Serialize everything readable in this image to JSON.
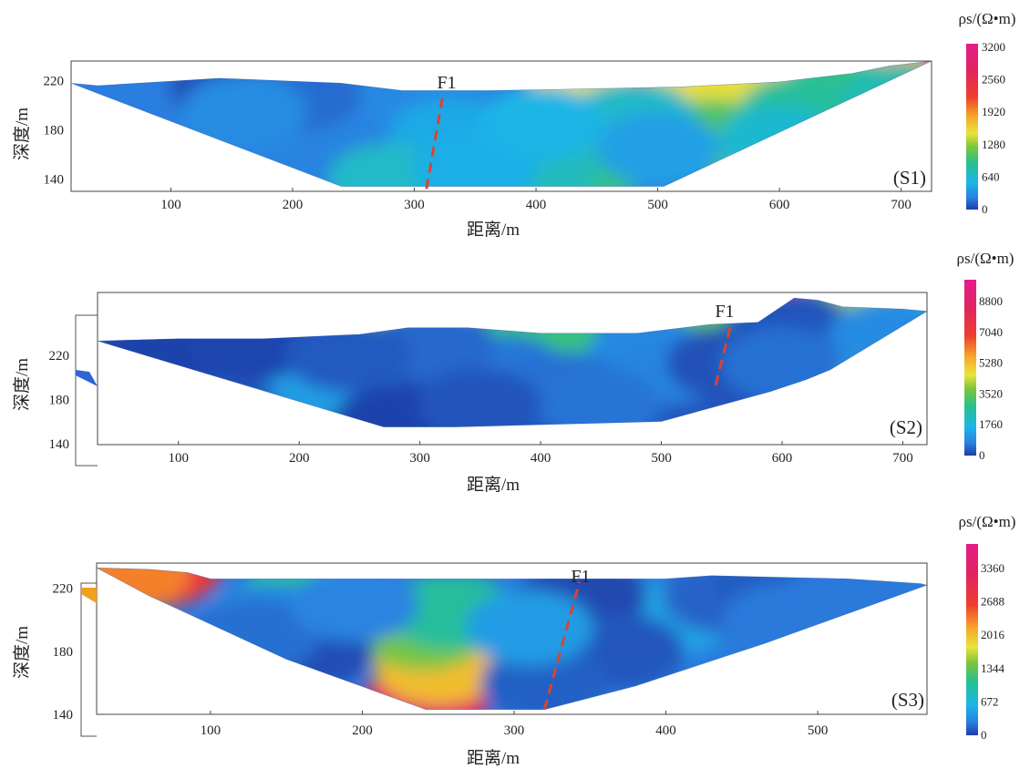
{
  "chart_data": [
    {
      "type": "heatmap",
      "panel_label": "(S1)",
      "fault_label": "F1",
      "xlabel": "距离/m",
      "ylabel": "深度/m",
      "x_ticks": [
        "100",
        "200",
        "300",
        "400",
        "500",
        "600",
        "700"
      ],
      "y_ticks": [
        "220",
        "180",
        "140"
      ],
      "xlim": [
        18,
        725
      ],
      "ylim": [
        130,
        236
      ],
      "colorbar": {
        "title": "ρs/(Ω•m)",
        "ticks": [
          "3200",
          "2560",
          "1920",
          "1280",
          "640",
          "0"
        ],
        "range": [
          0,
          3200
        ]
      },
      "section_outline": [
        [
          18,
          218
        ],
        [
          40,
          216
        ],
        [
          140,
          222
        ],
        [
          240,
          218
        ],
        [
          290,
          212
        ],
        [
          360,
          212
        ],
        [
          420,
          213
        ],
        [
          470,
          214
        ],
        [
          520,
          215
        ],
        [
          600,
          219
        ],
        [
          660,
          226
        ],
        [
          690,
          232
        ],
        [
          725,
          236
        ],
        [
          505,
          134
        ],
        [
          240,
          134
        ]
      ],
      "fault_trace": [
        [
          310,
          132
        ],
        [
          324,
          211
        ]
      ],
      "features": [
        {
          "x": 445,
          "y": 210,
          "rho": 3000
        },
        {
          "x": 440,
          "y": 204,
          "rho": 1500
        },
        {
          "x": 700,
          "y": 232,
          "rho": 3000
        },
        {
          "x": 672,
          "y": 230,
          "rho": 1800
        },
        {
          "x": 590,
          "y": 222,
          "rho": 1600
        },
        {
          "x": 540,
          "y": 215,
          "rho": 1500
        },
        {
          "x": 545,
          "y": 175,
          "rho": 1050
        },
        {
          "x": 440,
          "y": 150,
          "rho": 950
        },
        {
          "x": 400,
          "y": 148,
          "rho": 700
        },
        {
          "x": 650,
          "y": 210,
          "rho": 950
        },
        {
          "x": 618,
          "y": 195,
          "rho": 850
        },
        {
          "x": 700,
          "y": 205,
          "rho": 750
        },
        {
          "x": 70,
          "y": 206,
          "rho": 220
        },
        {
          "x": 150,
          "y": 215,
          "rho": 60
        },
        {
          "x": 205,
          "y": 209,
          "rho": 160
        },
        {
          "x": 310,
          "y": 210,
          "rho": 280
        },
        {
          "x": 160,
          "y": 195,
          "rho": 300
        },
        {
          "x": 330,
          "y": 175,
          "rho": 450
        },
        {
          "x": 280,
          "y": 140,
          "rho": 650
        },
        {
          "x": 350,
          "y": 150,
          "rho": 480
        },
        {
          "x": 480,
          "y": 190,
          "rho": 650
        },
        {
          "x": 600,
          "y": 170,
          "rho": 620
        },
        {
          "x": 500,
          "y": 165,
          "rho": 400
        },
        {
          "x": 405,
          "y": 185,
          "rho": 520
        }
      ]
    },
    {
      "type": "heatmap",
      "panel_label": "(S2)",
      "fault_label": "F1",
      "xlabel": "距离/m",
      "ylabel": "深度/m",
      "x_ticks": [
        "100",
        "200",
        "300",
        "400",
        "500",
        "600",
        "700"
      ],
      "y_ticks": [
        "220",
        "180",
        "140"
      ],
      "xlim": [
        33,
        720
      ],
      "ylim": [
        139,
        277
      ],
      "colorbar": {
        "title": "ρs/(Ω•m)",
        "ticks": [
          "8800",
          "7040",
          "5280",
          "3520",
          "1760",
          "0"
        ],
        "range": [
          0,
          10000
        ]
      },
      "section_outline": [
        [
          33,
          233
        ],
        [
          100,
          235
        ],
        [
          170,
          235
        ],
        [
          250,
          239
        ],
        [
          290,
          245
        ],
        [
          340,
          245
        ],
        [
          400,
          240
        ],
        [
          480,
          240
        ],
        [
          540,
          248
        ],
        [
          580,
          250
        ],
        [
          610,
          272
        ],
        [
          630,
          270
        ],
        [
          650,
          264
        ],
        [
          700,
          262
        ],
        [
          720,
          260
        ],
        [
          640,
          207
        ],
        [
          620,
          198
        ],
        [
          590,
          187
        ],
        [
          500,
          160
        ],
        [
          330,
          155
        ],
        [
          270,
          155
        ]
      ],
      "fault_trace": [
        [
          545,
          193
        ],
        [
          558,
          250
        ]
      ],
      "features": [
        {
          "x": 615,
          "y": 264,
          "rho": 9500
        },
        {
          "x": 637,
          "y": 257,
          "rho": 9000
        },
        {
          "x": 658,
          "y": 258,
          "rho": 2500
        },
        {
          "x": 685,
          "y": 256,
          "rho": 2500
        },
        {
          "x": 560,
          "y": 245,
          "rho": 3500
        },
        {
          "x": 300,
          "y": 243,
          "rho": 4000
        },
        {
          "x": 400,
          "y": 238,
          "rho": 3000
        },
        {
          "x": 632,
          "y": 240,
          "rho": 3500
        },
        {
          "x": 650,
          "y": 247,
          "rho": 4000
        },
        {
          "x": 620,
          "y": 225,
          "rho": 1600
        },
        {
          "x": 605,
          "y": 247,
          "rho": 250
        },
        {
          "x": 225,
          "y": 193,
          "rho": 1200
        },
        {
          "x": 490,
          "y": 222,
          "rho": 900
        },
        {
          "x": 505,
          "y": 208,
          "rho": 800
        },
        {
          "x": 690,
          "y": 238,
          "rho": 900
        },
        {
          "x": 150,
          "y": 235,
          "rho": 600
        },
        {
          "x": 90,
          "y": 225,
          "rho": 40
        },
        {
          "x": 160,
          "y": 230,
          "rho": 80
        },
        {
          "x": 280,
          "y": 160,
          "rho": 40
        },
        {
          "x": 370,
          "y": 205,
          "rho": 600
        },
        {
          "x": 420,
          "y": 190,
          "rho": 550
        },
        {
          "x": 310,
          "y": 230,
          "rho": 450
        },
        {
          "x": 450,
          "y": 175,
          "rho": 580
        },
        {
          "x": 555,
          "y": 213,
          "rho": 200
        },
        {
          "x": 600,
          "y": 212,
          "rho": 550
        },
        {
          "x": 240,
          "y": 220,
          "rho": 300
        },
        {
          "x": 350,
          "y": 175,
          "rho": 250
        }
      ]
    },
    {
      "type": "heatmap",
      "panel_label": "(S3)",
      "fault_label": "F1",
      "xlabel": "距离/m",
      "ylabel": "深度/m",
      "x_ticks": [
        "100",
        "200",
        "300",
        "400",
        "500"
      ],
      "y_ticks": [
        "220",
        "180",
        "140"
      ],
      "xlim": [
        25,
        572
      ],
      "ylim": [
        140,
        236
      ],
      "colorbar": {
        "title": "ρs/(Ω•m)",
        "ticks": [
          "3360",
          "2688",
          "2016",
          "1344",
          "672",
          "0"
        ],
        "range": [
          0,
          3800
        ]
      },
      "section_outline": [
        [
          25,
          233
        ],
        [
          60,
          232
        ],
        [
          85,
          230
        ],
        [
          100,
          226
        ],
        [
          250,
          226
        ],
        [
          330,
          226
        ],
        [
          400,
          226
        ],
        [
          430,
          228
        ],
        [
          475,
          227
        ],
        [
          520,
          226
        ],
        [
          568,
          223
        ],
        [
          572,
          222
        ],
        [
          465,
          185
        ],
        [
          380,
          158
        ],
        [
          320,
          143
        ],
        [
          242,
          143
        ],
        [
          150,
          175
        ],
        [
          60,
          215
        ]
      ],
      "fault_trace": [
        [
          320,
          143
        ],
        [
          343,
          224
        ]
      ],
      "features": [
        {
          "x": 65,
          "y": 232,
          "rho": 2800
        },
        {
          "x": 45,
          "y": 230,
          "rho": 2300
        },
        {
          "x": 240,
          "y": 146,
          "rho": 3300
        },
        {
          "x": 250,
          "y": 170,
          "rho": 2000
        },
        {
          "x": 240,
          "y": 192,
          "rho": 1400
        },
        {
          "x": 258,
          "y": 205,
          "rho": 1000
        },
        {
          "x": 163,
          "y": 216,
          "rho": 1100
        },
        {
          "x": 400,
          "y": 200,
          "rho": 500
        },
        {
          "x": 140,
          "y": 200,
          "rho": 350
        },
        {
          "x": 165,
          "y": 180,
          "rho": 60
        },
        {
          "x": 130,
          "y": 190,
          "rho": 200
        },
        {
          "x": 345,
          "y": 215,
          "rho": 40
        },
        {
          "x": 370,
          "y": 180,
          "rho": 100
        },
        {
          "x": 320,
          "y": 160,
          "rho": 140
        },
        {
          "x": 440,
          "y": 215,
          "rho": 150
        },
        {
          "x": 475,
          "y": 220,
          "rho": 120
        },
        {
          "x": 310,
          "y": 195,
          "rho": 450
        },
        {
          "x": 480,
          "y": 200,
          "rho": 240
        },
        {
          "x": 520,
          "y": 215,
          "rho": 240
        },
        {
          "x": 195,
          "y": 210,
          "rho": 300
        }
      ]
    }
  ]
}
